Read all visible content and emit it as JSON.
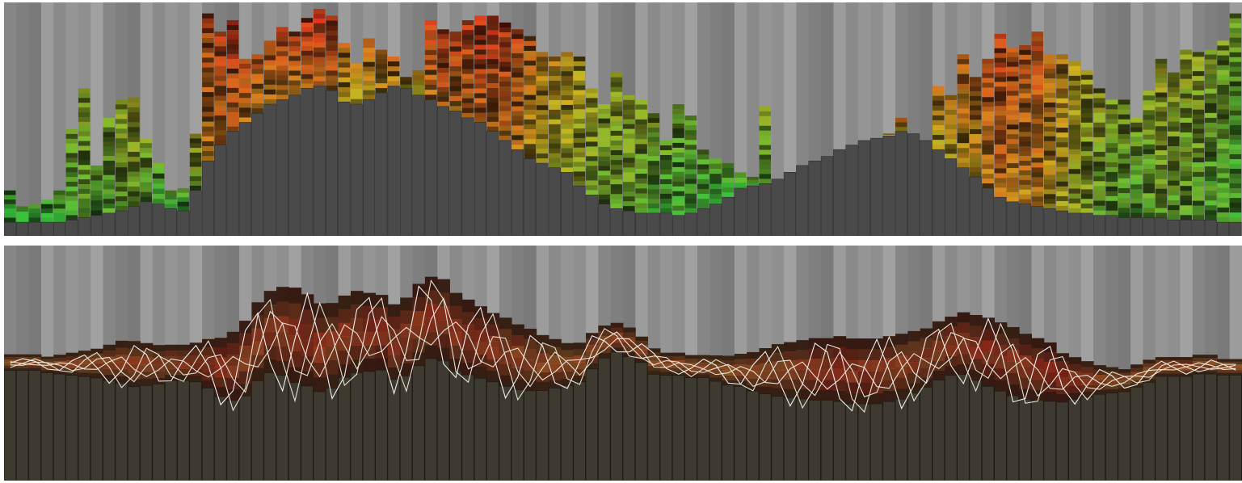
{
  "chart_data": [
    {
      "type": "bar",
      "title": "",
      "xlabel": "",
      "ylabel": "",
      "x_count": 100,
      "ylim": [
        0,
        1
      ],
      "grid": false,
      "legend": "none",
      "style": "stacked colored segments on grey columns, green (low) to red (high)",
      "colors": {
        "low": "#39c23b",
        "mid": "#d2b21e",
        "high": "#e3261c",
        "base": "#4a4a4a",
        "background": "#8a8a8a"
      },
      "series": [
        {
          "top": [
            0.2,
            0.13,
            0.14,
            0.16,
            0.2,
            0.47,
            0.65,
            0.31,
            0.52,
            0.6,
            0.61,
            0.43,
            0.32,
            0.2,
            0.21,
            0.45,
            0.98,
            0.9,
            0.95,
            0.78,
            0.8,
            0.86,
            0.92,
            0.9,
            0.96,
            1.0,
            0.97,
            0.85,
            0.76,
            0.87,
            0.82,
            0.79,
            0.7,
            0.73,
            0.95,
            0.91,
            0.9,
            0.95,
            0.97,
            0.97,
            0.94,
            0.91,
            0.88,
            0.81,
            0.79,
            0.81,
            0.79,
            0.65,
            0.58,
            0.72,
            0.62,
            0.6,
            0.54,
            0.42,
            0.58,
            0.53,
            0.38,
            0.34,
            0.32,
            0.28,
            0.26,
            0.57,
            0.23,
            0.15,
            0.2,
            0.28,
            0.17,
            0.2,
            0.2,
            0.2,
            0.31,
            0.45,
            0.52,
            0.33,
            0.36,
            0.66,
            0.62,
            0.8,
            0.7,
            0.78,
            0.89,
            0.83,
            0.84,
            0.9,
            0.8,
            0.8,
            0.77,
            0.73,
            0.65,
            0.6,
            0.6,
            0.52,
            0.64,
            0.78,
            0.72,
            0.82,
            0.81,
            0.82,
            0.86,
            0.98
          ],
          "base": [
            0.06,
            0.06,
            0.06,
            0.06,
            0.06,
            0.07,
            0.08,
            0.09,
            0.1,
            0.11,
            0.13,
            0.15,
            0.14,
            0.12,
            0.11,
            0.2,
            0.33,
            0.4,
            0.46,
            0.5,
            0.54,
            0.58,
            0.6,
            0.62,
            0.65,
            0.66,
            0.64,
            0.59,
            0.58,
            0.6,
            0.63,
            0.66,
            0.65,
            0.62,
            0.6,
            0.57,
            0.55,
            0.52,
            0.5,
            0.46,
            0.42,
            0.38,
            0.34,
            0.32,
            0.3,
            0.28,
            0.22,
            0.18,
            0.14,
            0.12,
            0.11,
            0.1,
            0.1,
            0.1,
            0.09,
            0.1,
            0.12,
            0.14,
            0.17,
            0.21,
            0.22,
            0.23,
            0.25,
            0.28,
            0.31,
            0.33,
            0.35,
            0.38,
            0.4,
            0.42,
            0.43,
            0.44,
            0.46,
            0.45,
            0.42,
            0.38,
            0.34,
            0.3,
            0.26,
            0.21,
            0.17,
            0.15,
            0.14,
            0.13,
            0.12,
            0.11,
            0.1,
            0.1,
            0.09,
            0.09,
            0.08,
            0.08,
            0.08,
            0.08,
            0.07,
            0.07,
            0.07,
            0.07,
            0.06,
            0.06
          ],
          "heat": [
            0.1,
            0.1,
            0.1,
            0.12,
            0.15,
            0.25,
            0.32,
            0.22,
            0.3,
            0.35,
            0.4,
            0.3,
            0.2,
            0.15,
            0.18,
            0.4,
            0.8,
            0.85,
            0.9,
            0.82,
            0.78,
            0.8,
            0.85,
            0.84,
            0.88,
            0.92,
            0.88,
            0.7,
            0.62,
            0.7,
            0.72,
            0.75,
            0.65,
            0.62,
            0.85,
            0.88,
            0.85,
            0.88,
            0.92,
            0.9,
            0.88,
            0.82,
            0.72,
            0.62,
            0.58,
            0.56,
            0.5,
            0.42,
            0.35,
            0.38,
            0.36,
            0.34,
            0.28,
            0.22,
            0.26,
            0.24,
            0.2,
            0.18,
            0.18,
            0.18,
            0.2,
            0.3,
            0.18,
            0.15,
            0.22,
            0.3,
            0.28,
            0.4,
            0.48,
            0.56,
            0.62,
            0.66,
            0.7,
            0.62,
            0.58,
            0.64,
            0.66,
            0.74,
            0.72,
            0.8,
            0.86,
            0.82,
            0.78,
            0.82,
            0.7,
            0.62,
            0.52,
            0.46,
            0.38,
            0.32,
            0.3,
            0.28,
            0.32,
            0.4,
            0.36,
            0.36,
            0.34,
            0.3,
            0.28,
            0.24
          ]
        }
      ]
    },
    {
      "type": "line",
      "title": "",
      "xlabel": "",
      "ylabel": "",
      "x_count": 100,
      "ylim": [
        0,
        1
      ],
      "grid": false,
      "legend": "none",
      "style": "white line traces over dark glow band on grey columns",
      "colors": {
        "trace": "#ffffff",
        "glow_low": "#d9a441",
        "glow_high": "#d8251b",
        "base": "#3e3a30",
        "background": "#8a8a8a"
      },
      "series": [
        {
          "centers": [
            0.5,
            0.5,
            0.5,
            0.49,
            0.49,
            0.49,
            0.49,
            0.49,
            0.49,
            0.49,
            0.48,
            0.48,
            0.48,
            0.49,
            0.49,
            0.49,
            0.48,
            0.46,
            0.46,
            0.49,
            0.56,
            0.6,
            0.6,
            0.58,
            0.56,
            0.53,
            0.54,
            0.58,
            0.6,
            0.6,
            0.6,
            0.56,
            0.58,
            0.63,
            0.66,
            0.65,
            0.6,
            0.58,
            0.56,
            0.54,
            0.52,
            0.5,
            0.49,
            0.48,
            0.48,
            0.48,
            0.49,
            0.54,
            0.58,
            0.6,
            0.58,
            0.55,
            0.5,
            0.49,
            0.49,
            0.48,
            0.48,
            0.47,
            0.46,
            0.46,
            0.45,
            0.45,
            0.45,
            0.45,
            0.45,
            0.45,
            0.45,
            0.45,
            0.44,
            0.44,
            0.44,
            0.45,
            0.46,
            0.48,
            0.5,
            0.53,
            0.55,
            0.56,
            0.54,
            0.52,
            0.5,
            0.48,
            0.46,
            0.45,
            0.44,
            0.42,
            0.42,
            0.42,
            0.42,
            0.42,
            0.42,
            0.44,
            0.46,
            0.48,
            0.48,
            0.48,
            0.49,
            0.49,
            0.48,
            0.48
          ],
          "spread": [
            0.02,
            0.02,
            0.02,
            0.02,
            0.03,
            0.04,
            0.05,
            0.06,
            0.08,
            0.1,
            0.11,
            0.1,
            0.09,
            0.08,
            0.08,
            0.09,
            0.12,
            0.15,
            0.18,
            0.2,
            0.21,
            0.22,
            0.24,
            0.26,
            0.25,
            0.24,
            0.23,
            0.22,
            0.22,
            0.21,
            0.2,
            0.2,
            0.21,
            0.22,
            0.22,
            0.22,
            0.21,
            0.2,
            0.19,
            0.18,
            0.18,
            0.17,
            0.16,
            0.14,
            0.12,
            0.1,
            0.09,
            0.08,
            0.07,
            0.06,
            0.06,
            0.05,
            0.05,
            0.04,
            0.04,
            0.04,
            0.04,
            0.05,
            0.06,
            0.07,
            0.09,
            0.11,
            0.13,
            0.14,
            0.15,
            0.16,
            0.16,
            0.17,
            0.17,
            0.17,
            0.17,
            0.17,
            0.17,
            0.16,
            0.15,
            0.15,
            0.15,
            0.16,
            0.17,
            0.18,
            0.18,
            0.18,
            0.17,
            0.16,
            0.15,
            0.12,
            0.1,
            0.08,
            0.06,
            0.05,
            0.04,
            0.04,
            0.04,
            0.03,
            0.03,
            0.03,
            0.03,
            0.03,
            0.02,
            0.02
          ],
          "heat": [
            0.35,
            0.35,
            0.35,
            0.4,
            0.45,
            0.45,
            0.45,
            0.45,
            0.5,
            0.5,
            0.5,
            0.48,
            0.46,
            0.5,
            0.55,
            0.6,
            0.7,
            0.8,
            0.75,
            0.65,
            0.6,
            0.65,
            0.7,
            0.72,
            0.7,
            0.65,
            0.62,
            0.65,
            0.7,
            0.75,
            0.78,
            0.72,
            0.7,
            0.72,
            0.7,
            0.68,
            0.7,
            0.72,
            0.74,
            0.7,
            0.62,
            0.55,
            0.5,
            0.45,
            0.45,
            0.45,
            0.45,
            0.45,
            0.5,
            0.55,
            0.5,
            0.45,
            0.4,
            0.35,
            0.35,
            0.35,
            0.35,
            0.35,
            0.35,
            0.38,
            0.4,
            0.45,
            0.5,
            0.55,
            0.6,
            0.68,
            0.75,
            0.8,
            0.78,
            0.72,
            0.68,
            0.62,
            0.58,
            0.55,
            0.58,
            0.62,
            0.66,
            0.7,
            0.74,
            0.76,
            0.74,
            0.7,
            0.7,
            0.72,
            0.76,
            0.8,
            0.72,
            0.55,
            0.45,
            0.4,
            0.38,
            0.38,
            0.38,
            0.4,
            0.45,
            0.45,
            0.42,
            0.4,
            0.38,
            0.35
          ]
        }
      ]
    }
  ]
}
